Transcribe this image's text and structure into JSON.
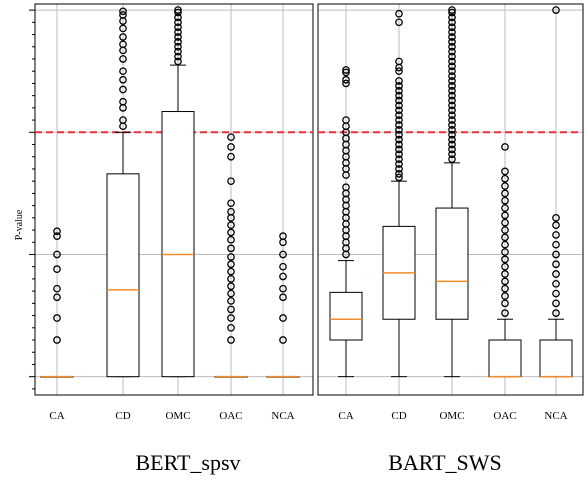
{
  "chart_data": {
    "type": "box",
    "ylabel": "P-value",
    "grid": true,
    "threshold_line": {
      "y": 2,
      "style": "dashed",
      "color": "#e8323b"
    },
    "colors": {
      "box": "#000000",
      "median": "#f28c28",
      "grid": "#bdbdbd",
      "threshold": "#e8323b",
      "frame": "#000000"
    },
    "panels": [
      {
        "title": "BERT_spsv",
        "categories": [
          "CA",
          "CD",
          "OMC",
          "OAC",
          "NCA"
        ],
        "ylim": [
          -0.15,
          3.05
        ],
        "boxes": [
          {
            "category": "CA",
            "whislo": 0,
            "q1": 0,
            "med": 0,
            "q3": 0,
            "whishi": 0,
            "fliers": [
              0.3,
              0.48,
              0.65,
              0.72,
              0.88,
              1.0,
              1.15,
              1.19
            ]
          },
          {
            "category": "CD",
            "whislo": 0,
            "q1": 0,
            "med": 0.71,
            "q3": 1.66,
            "whishi": 2.0,
            "fliers": [
              2.05,
              2.1,
              2.2,
              2.25,
              2.35,
              2.43,
              2.5,
              2.6,
              2.67,
              2.72,
              2.78,
              2.85,
              2.91,
              2.96,
              2.99
            ]
          },
          {
            "category": "OMC",
            "whislo": 0,
            "q1": 0,
            "med": 1.0,
            "q3": 2.17,
            "whishi": 2.55,
            "fliers": [
              2.58,
              2.62,
              2.66,
              2.7,
              2.74,
              2.78,
              2.82,
              2.86,
              2.9,
              2.94,
              2.98,
              3.0
            ]
          },
          {
            "category": "OAC",
            "whislo": 0,
            "q1": 0,
            "med": 0,
            "q3": 0,
            "whishi": 0,
            "fliers": [
              0.3,
              0.4,
              0.48,
              0.55,
              0.62,
              0.68,
              0.74,
              0.8,
              0.86,
              0.92,
              0.98,
              1.05,
              1.12,
              1.18,
              1.24,
              1.3,
              1.35,
              1.42,
              1.6,
              1.8,
              1.88,
              1.96
            ]
          },
          {
            "category": "NCA",
            "whislo": 0,
            "q1": 0,
            "med": 0,
            "q3": 0,
            "whishi": 0,
            "fliers": [
              0.3,
              0.48,
              0.65,
              0.72,
              0.82,
              0.9,
              1.0,
              1.1,
              1.15
            ]
          }
        ]
      },
      {
        "title": "BART_SWS",
        "categories": [
          "CA",
          "CD",
          "OMC",
          "OAC",
          "NCA"
        ],
        "ylim": [
          -0.15,
          3.05
        ],
        "boxes": [
          {
            "category": "CA",
            "whislo": 0,
            "q1": 0.3,
            "med": 0.47,
            "q3": 0.69,
            "whishi": 0.95,
            "fliers": [
              1.0,
              1.05,
              1.1,
              1.15,
              1.2,
              1.25,
              1.3,
              1.35,
              1.4,
              1.45,
              1.5,
              1.55,
              1.65,
              1.7,
              1.75,
              1.8,
              1.85,
              1.9,
              1.95,
              2.0,
              2.05,
              2.1,
              2.4,
              2.43,
              2.49,
              2.51
            ]
          },
          {
            "category": "CD",
            "whislo": 0,
            "q1": 0.47,
            "med": 0.85,
            "q3": 1.23,
            "whishi": 1.6,
            "fliers": [
              1.63,
              1.66,
              1.7,
              1.74,
              1.78,
              1.82,
              1.86,
              1.9,
              1.94,
              1.98,
              2.02,
              2.06,
              2.1,
              2.14,
              2.18,
              2.22,
              2.26,
              2.3,
              2.34,
              2.38,
              2.42,
              2.5,
              2.53,
              2.58,
              2.9,
              2.97
            ]
          },
          {
            "category": "OMC",
            "whislo": 0,
            "q1": 0.47,
            "med": 0.78,
            "q3": 1.38,
            "whishi": 1.75,
            "fliers": [
              1.78,
              1.82,
              1.86,
              1.9,
              1.94,
              1.98,
              2.02,
              2.06,
              2.1,
              2.14,
              2.18,
              2.22,
              2.26,
              2.3,
              2.34,
              2.38,
              2.42,
              2.46,
              2.5,
              2.54,
              2.58,
              2.62,
              2.66,
              2.7,
              2.74,
              2.78,
              2.82,
              2.86,
              2.9,
              2.94,
              2.98,
              3.0
            ]
          },
          {
            "category": "OAC",
            "whislo": 0,
            "q1": 0,
            "med": 0,
            "q3": 0.3,
            "whishi": 0.47,
            "fliers": [
              0.52,
              0.6,
              0.66,
              0.72,
              0.78,
              0.84,
              0.9,
              0.96,
              1.02,
              1.08,
              1.14,
              1.2,
              1.26,
              1.32,
              1.38,
              1.44,
              1.5,
              1.56,
              1.62,
              1.68,
              1.88
            ]
          },
          {
            "category": "NCA",
            "whislo": 0,
            "q1": 0,
            "med": 0,
            "q3": 0.3,
            "whishi": 0.47,
            "fliers": [
              0.52,
              0.6,
              0.68,
              0.76,
              0.84,
              0.92,
              1.0,
              1.08,
              1.16,
              1.24,
              1.3,
              3.0
            ]
          }
        ]
      }
    ]
  }
}
